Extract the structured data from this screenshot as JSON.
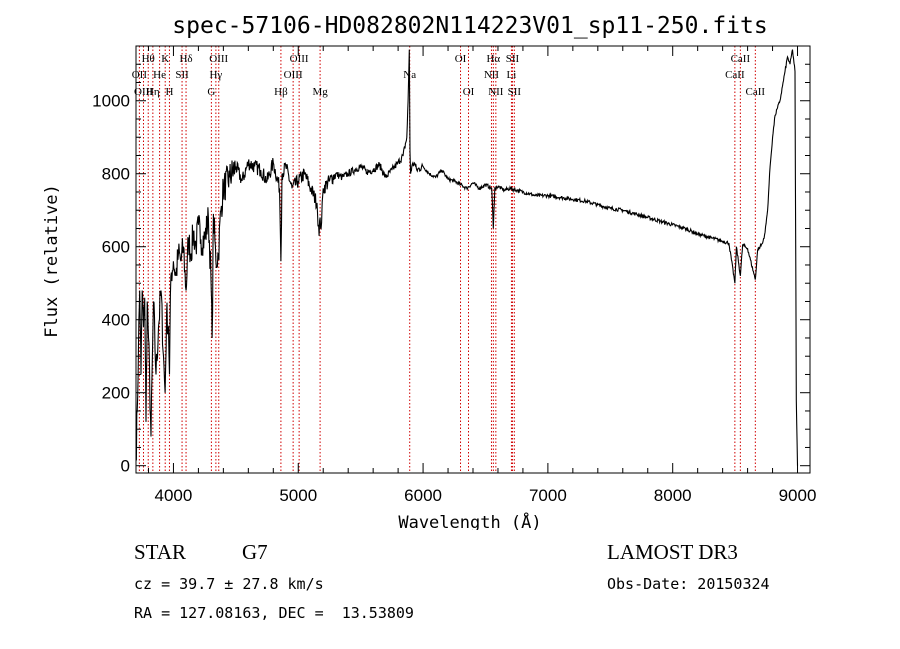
{
  "chart_data": {
    "type": "line",
    "title": "spec-57106-HD082802N114223V01_sp11-250.fits",
    "xlabel": "Wavelength (Å)",
    "ylabel": "Flux (relative)",
    "xlim": [
      3700,
      9100
    ],
    "ylim": [
      -20,
      1150
    ],
    "x_ticks": [
      4000,
      5000,
      6000,
      7000,
      8000,
      9000
    ],
    "y_ticks": [
      0,
      200,
      400,
      600,
      800,
      1000
    ],
    "series": [
      {
        "name": "flux",
        "x": [
          3700,
          3710,
          3720,
          3730,
          3740,
          3750,
          3760,
          3770,
          3780,
          3790,
          3800,
          3820,
          3840,
          3860,
          3880,
          3900,
          3920,
          3933,
          3945,
          3960,
          3968,
          3980,
          4000,
          4020,
          4040,
          4060,
          4080,
          4101,
          4120,
          4140,
          4160,
          4180,
          4200,
          4220,
          4250,
          4280,
          4300,
          4310,
          4320,
          4340,
          4360,
          4380,
          4400,
          4450,
          4500,
          4550,
          4600,
          4650,
          4700,
          4750,
          4800,
          4850,
          4861,
          4870,
          4900,
          4950,
          5000,
          5050,
          5100,
          5150,
          5167,
          5175,
          5183,
          5200,
          5250,
          5300,
          5350,
          5400,
          5450,
          5500,
          5550,
          5600,
          5650,
          5700,
          5750,
          5800,
          5840,
          5870,
          5880,
          5890,
          5895,
          5900,
          5910,
          5930,
          5950,
          6000,
          6050,
          6100,
          6150,
          6200,
          6250,
          6300,
          6350,
          6400,
          6450,
          6500,
          6550,
          6563,
          6575,
          6600,
          6650,
          6700,
          6750,
          6800,
          6900,
          7000,
          7100,
          7200,
          7300,
          7400,
          7500,
          7600,
          7700,
          7800,
          7900,
          8000,
          8100,
          8200,
          8300,
          8400,
          8450,
          8498,
          8510,
          8542,
          8560,
          8600,
          8662,
          8680,
          8700,
          8720,
          8740,
          8760,
          8780,
          8800,
          8820,
          8840,
          8860,
          8880,
          8900,
          8920,
          8940,
          8960,
          8980,
          8990,
          9000
        ],
        "y": [
          20,
          150,
          330,
          480,
          250,
          480,
          380,
          460,
          120,
          450,
          350,
          80,
          450,
          250,
          380,
          480,
          300,
          200,
          420,
          380,
          250,
          520,
          560,
          520,
          580,
          560,
          600,
          480,
          620,
          580,
          640,
          600,
          660,
          620,
          620,
          680,
          520,
          350,
          690,
          560,
          580,
          700,
          760,
          790,
          820,
          780,
          830,
          820,
          810,
          780,
          830,
          760,
          560,
          800,
          820,
          760,
          780,
          800,
          760,
          720,
          630,
          680,
          650,
          760,
          780,
          800,
          790,
          800,
          810,
          820,
          805,
          810,
          825,
          790,
          810,
          830,
          850,
          900,
          1000,
          1140,
          860,
          800,
          820,
          830,
          810,
          820,
          800,
          790,
          810,
          785,
          780,
          770,
          760,
          775,
          760,
          770,
          760,
          650,
          760,
          765,
          755,
          760,
          755,
          750,
          740,
          740,
          735,
          730,
          725,
          715,
          705,
          700,
          690,
          680,
          670,
          660,
          650,
          635,
          625,
          615,
          610,
          500,
          600,
          520,
          605,
          595,
          510,
          590,
          600,
          610,
          640,
          700,
          820,
          900,
          960,
          980,
          1000,
          1040,
          1080,
          1120,
          1100,
          1140,
          1080,
          180,
          0
        ]
      }
    ],
    "line_markers": [
      {
        "label": "Hθ",
        "x": 3798,
        "row": 1
      },
      {
        "label": "OII",
        "x": 3727,
        "row": 2
      },
      {
        "label": "OIII",
        "x": 3760,
        "row": 3
      },
      {
        "label": "Hη",
        "x": 3835,
        "row": 3
      },
      {
        "label": "He",
        "x": 3889,
        "row": 2
      },
      {
        "label": "K",
        "x": 3934,
        "row": 1
      },
      {
        "label": "SII",
        "x": 4069,
        "row": 2
      },
      {
        "label": "H",
        "x": 3968,
        "row": 3
      },
      {
        "label": "Hδ",
        "x": 4101,
        "row": 1
      },
      {
        "label": "OIII",
        "x": 4363,
        "row": 1
      },
      {
        "label": "Hγ",
        "x": 4340,
        "row": 2
      },
      {
        "label": "G",
        "x": 4304,
        "row": 3
      },
      {
        "label": "Hβ",
        "x": 4861,
        "row": 3
      },
      {
        "label": "OIII",
        "x": 5007,
        "row": 1
      },
      {
        "label": "OIII",
        "x": 4959,
        "row": 2
      },
      {
        "label": "Mg",
        "x": 5175,
        "row": 3
      },
      {
        "label": "Na",
        "x": 5893,
        "row": 2
      },
      {
        "label": "OI",
        "x": 6300,
        "row": 1
      },
      {
        "label": "OI",
        "x": 6364,
        "row": 3
      },
      {
        "label": "Hα",
        "x": 6563,
        "row": 1
      },
      {
        "label": "NII",
        "x": 6548,
        "row": 2
      },
      {
        "label": "NII",
        "x": 6583,
        "row": 3
      },
      {
        "label": "SII",
        "x": 6716,
        "row": 1
      },
      {
        "label": "Li",
        "x": 6708,
        "row": 2
      },
      {
        "label": "SII",
        "x": 6731,
        "row": 3
      },
      {
        "label": "CaII",
        "x": 8542,
        "row": 1
      },
      {
        "label": "CaII",
        "x": 8498,
        "row": 2
      },
      {
        "label": "CaII",
        "x": 8662,
        "row": 3
      }
    ],
    "marker_color": "#d00000"
  },
  "footer": {
    "object_class": "STAR",
    "subclass": "G7",
    "survey": "LAMOST DR3",
    "redshift_text": "cz = 39.7 ± 27.8 km/s",
    "obs_date": "Obs-Date: 20150324",
    "coords": "RA = 127.08163, DEC =  13.53809"
  }
}
